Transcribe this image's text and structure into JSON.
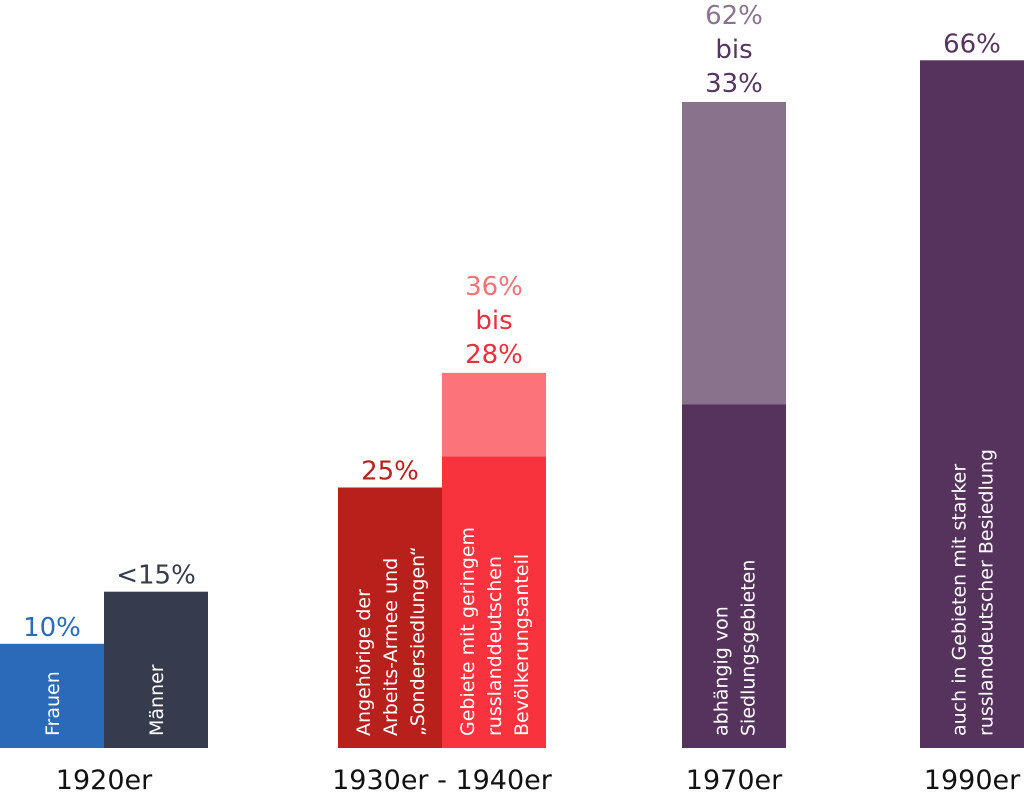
{
  "chart_data": {
    "type": "bar",
    "title": "",
    "xlabel": "",
    "ylabel": "",
    "ylim": [
      0,
      70
    ],
    "grid": false,
    "legend": "none",
    "categories": [
      "1920er",
      "1930er - 1940er",
      "1970er",
      "1990er"
    ],
    "bars": [
      {
        "category": "1920er",
        "inside_label": "Frauen",
        "value": 10,
        "top_label": "10%",
        "label_color": "#2a6ab8",
        "segments": [
          {
            "value": 10,
            "color": "#2a6ab8"
          }
        ]
      },
      {
        "category": "1920er",
        "inside_label": "Männer",
        "value": 15,
        "top_label": "<15%",
        "label_color": "#363b4d",
        "segments": [
          {
            "value": 15,
            "color": "#363b4d"
          }
        ]
      },
      {
        "category": "1930er - 1940er",
        "inside_label": "Angehörige der\nArbeits-Armee und\n„Sondersiedlungen“",
        "value": 25,
        "top_label": "25%",
        "label_color": "#b8201b",
        "segments": [
          {
            "value": 25,
            "color": "#b8201b"
          }
        ]
      },
      {
        "category": "1930er - 1940er",
        "inside_label": "Gebiete mit geringem\nrusslanddeutschen\nBevölkerungsanteil",
        "value": 36,
        "range": [
          28,
          36
        ],
        "top_label_lines": [
          {
            "text": "36%",
            "color": "#f77177"
          },
          {
            "text": "bis",
            "color": "#e8303c"
          },
          {
            "text": "28%",
            "color": "#e8303c"
          }
        ],
        "segments": [
          {
            "value": 28,
            "color": "#f9333d"
          },
          {
            "value": 8,
            "color": "#fb7479"
          }
        ]
      },
      {
        "category": "1970er",
        "inside_label": "abhängig von\nSiedlungsgebieten",
        "value": 62,
        "range": [
          33,
          62
        ],
        "top_label_lines": [
          {
            "text": "62%",
            "color": "#8b748f"
          },
          {
            "text": "bis",
            "color": "#55355e"
          },
          {
            "text": "33%",
            "color": "#55355e"
          }
        ],
        "segments": [
          {
            "value": 33,
            "color": "#55335d"
          },
          {
            "value": 29,
            "color": "#88728c"
          }
        ]
      },
      {
        "category": "1990er",
        "inside_label": "auch in Gebieten mit starker\nrusslanddeutscher Besiedlung",
        "value": 66,
        "top_label": "66%",
        "label_color": "#55355e",
        "segments": [
          {
            "value": 66,
            "color": "#55335d"
          }
        ]
      }
    ]
  }
}
